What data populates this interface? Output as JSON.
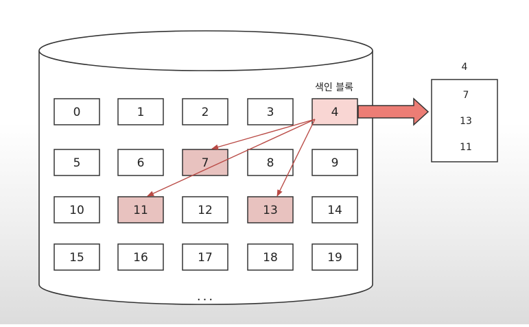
{
  "diagram": {
    "index_block_label": "색인 블록",
    "blocks": [
      "0",
      "1",
      "2",
      "3",
      "4",
      "5",
      "6",
      "7",
      "8",
      "9",
      "10",
      "11",
      "12",
      "13",
      "14",
      "15",
      "16",
      "17",
      "18",
      "19"
    ],
    "index_block": "4",
    "highlighted_blocks": [
      "4",
      "7",
      "11",
      "13"
    ],
    "pointed_blocks": [
      "7",
      "11",
      "13"
    ],
    "more": "...",
    "index_table": {
      "header": "4",
      "entries": [
        "7",
        "13",
        "11"
      ]
    },
    "colors": {
      "index_block_fill": "#f9d6d3",
      "data_block_fill": "#e8c2bf",
      "pointer_arrow": "#b94a45",
      "big_arrow_fill": "#ec7d75",
      "outline": "#333333"
    }
  }
}
